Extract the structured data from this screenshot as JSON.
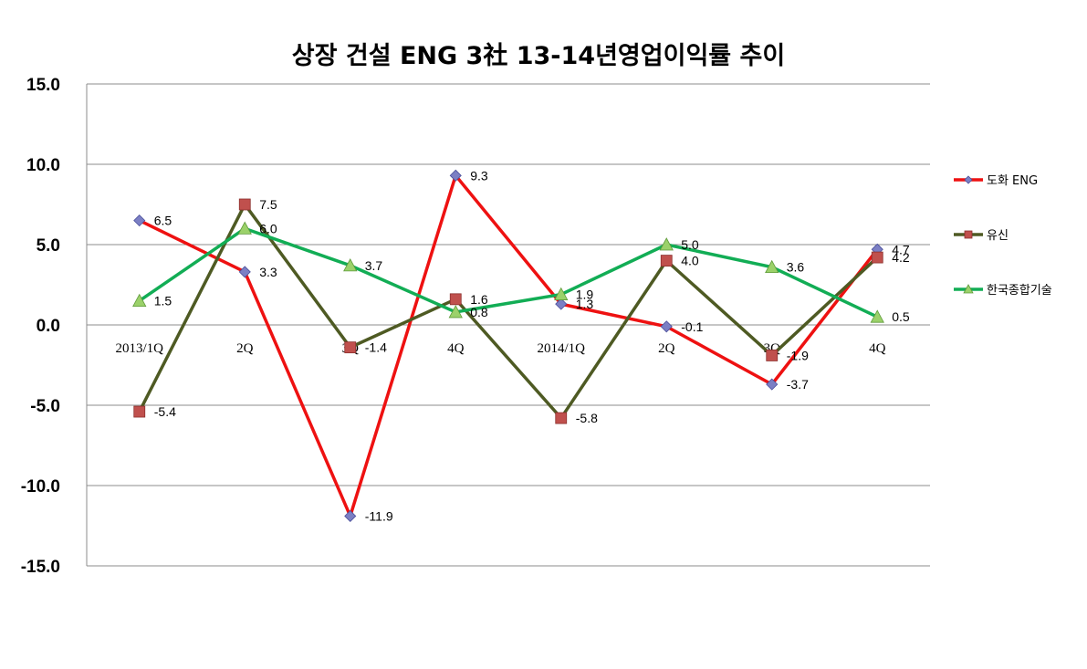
{
  "chart_data": {
    "type": "line",
    "title": "상장 건설 ENG 3社 13-14년영업이익률 추이",
    "categories": [
      "2013/1Q",
      "2Q",
      "3Q",
      "4Q",
      "2014/1Q",
      "2Q",
      "3Q",
      "4Q"
    ],
    "ylim": [
      -15.0,
      15.0
    ],
    "yticks": [
      "15.0",
      "10.0",
      "5.0",
      "0.0",
      "-5.0",
      "-10.0",
      "-15.0"
    ],
    "grid": true,
    "legend_position": "right",
    "series": [
      {
        "name": "도화 ENG",
        "values": [
          6.5,
          3.3,
          -11.9,
          9.3,
          1.3,
          -0.1,
          -3.7,
          4.7
        ],
        "labels": [
          "6.5",
          "3.3",
          "-11.9",
          "9.3",
          "1.3",
          "-0.1",
          "-3.7",
          "4.7"
        ],
        "color": "#ee1111",
        "marker": "diamond",
        "marker_color": "#7b7fc4"
      },
      {
        "name": "유신",
        "values": [
          -5.4,
          7.5,
          -1.4,
          1.6,
          -5.8,
          4.0,
          -1.9,
          4.2
        ],
        "labels": [
          "-5.4",
          "7.5",
          "-1.4",
          "1.6",
          "-5.8",
          "4.0",
          "-1.9",
          "4.2"
        ],
        "color": "#4e5a23",
        "marker": "square",
        "marker_color": "#c0504d"
      },
      {
        "name": "한국종합기술",
        "values": [
          1.5,
          6.0,
          3.7,
          0.8,
          1.9,
          5.0,
          3.6,
          0.5
        ],
        "labels": [
          "1.5",
          "6.0",
          "3.7",
          "0.8",
          "1.9",
          "5.0",
          "3.6",
          "0.5"
        ],
        "color": "#12ad55",
        "marker": "triangle",
        "marker_color": "#9bd16a"
      }
    ]
  }
}
